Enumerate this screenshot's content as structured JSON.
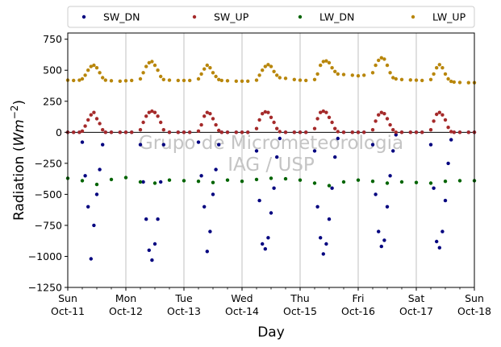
{
  "chart_data": {
    "type": "scatter",
    "title": "",
    "xlabel": "Day",
    "ylabel_prefix": "Radiation (",
    "ylabel_unit": "Wm",
    "ylabel_exp": "−2",
    "ylabel_suffix": ")",
    "ylim": [
      -1250,
      800
    ],
    "xlim_days": [
      0,
      7
    ],
    "yticks": [
      -1250,
      -1000,
      -750,
      -500,
      -250,
      0,
      250,
      500,
      750
    ],
    "xticks": [
      {
        "day": 0,
        "l1": "Sun",
        "l2": "Oct-11"
      },
      {
        "day": 1,
        "l1": "Mon",
        "l2": "Oct-12"
      },
      {
        "day": 2,
        "l1": "Tue",
        "l2": "Oct-13"
      },
      {
        "day": 3,
        "l1": "Wed",
        "l2": "Oct-14"
      },
      {
        "day": 4,
        "l1": "Thu",
        "l2": "Oct-15"
      },
      {
        "day": 5,
        "l1": "Fri",
        "l2": "Oct-16"
      },
      {
        "day": 6,
        "l1": "Sat",
        "l2": "Oct-17"
      },
      {
        "day": 7,
        "l1": "Sun",
        "l2": "Oct-18"
      }
    ],
    "grid": "vertical-major",
    "legend_position": "top-outside",
    "zero_line": true,
    "watermark": [
      "Grupo de Micrometeorologia",
      "IAG / USP"
    ],
    "series": [
      {
        "name": "SW_DN",
        "color": "#00007f",
        "x": [
          0.0,
          0.1,
          0.2,
          0.25,
          0.3,
          0.35,
          0.4,
          0.45,
          0.5,
          0.55,
          0.6,
          0.65,
          0.75,
          0.9,
          1.0,
          1.1,
          1.25,
          1.3,
          1.35,
          1.4,
          1.45,
          1.5,
          1.55,
          1.6,
          1.65,
          1.75,
          1.9,
          2.0,
          2.1,
          2.25,
          2.3,
          2.35,
          2.4,
          2.45,
          2.5,
          2.55,
          2.6,
          2.65,
          2.75,
          2.9,
          3.0,
          3.1,
          3.25,
          3.3,
          3.35,
          3.4,
          3.45,
          3.5,
          3.55,
          3.6,
          3.65,
          3.75,
          3.9,
          4.0,
          4.1,
          4.25,
          4.3,
          4.35,
          4.4,
          4.45,
          4.5,
          4.55,
          4.6,
          4.65,
          4.75,
          4.9,
          5.0,
          5.1,
          5.25,
          5.3,
          5.35,
          5.4,
          5.45,
          5.5,
          5.55,
          5.6,
          5.65,
          5.75,
          5.9,
          6.0,
          6.1,
          6.25,
          6.3,
          6.35,
          6.4,
          6.45,
          6.5,
          6.55,
          6.6,
          6.65,
          6.75,
          6.9,
          7.0
        ],
        "y": [
          0,
          0,
          0,
          -80,
          -350,
          -600,
          -1020,
          -750,
          -500,
          -300,
          -100,
          0,
          0,
          0,
          0,
          0,
          -100,
          -400,
          -700,
          -950,
          -1030,
          -900,
          -700,
          -400,
          -100,
          0,
          0,
          0,
          0,
          -80,
          -350,
          -600,
          -960,
          -800,
          -500,
          -300,
          -100,
          0,
          0,
          0,
          0,
          0,
          -150,
          -550,
          -900,
          -940,
          -850,
          -650,
          -450,
          -200,
          -50,
          0,
          0,
          0,
          0,
          -150,
          -600,
          -850,
          -980,
          -900,
          -700,
          -450,
          -200,
          -50,
          0,
          0,
          0,
          0,
          -100,
          -500,
          -800,
          -920,
          -870,
          -600,
          -350,
          -150,
          -20,
          0,
          0,
          0,
          0,
          -100,
          -450,
          -880,
          -930,
          -800,
          -550,
          -250,
          -60,
          0,
          0,
          0,
          0
        ]
      },
      {
        "name": "SW_UP",
        "color": "#a52a2a",
        "x": [
          0.0,
          0.1,
          0.2,
          0.25,
          0.3,
          0.35,
          0.4,
          0.45,
          0.5,
          0.55,
          0.6,
          0.65,
          0.75,
          0.9,
          1.0,
          1.1,
          1.25,
          1.3,
          1.35,
          1.4,
          1.45,
          1.5,
          1.55,
          1.6,
          1.65,
          1.75,
          1.9,
          2.0,
          2.1,
          2.25,
          2.3,
          2.35,
          2.4,
          2.45,
          2.5,
          2.55,
          2.6,
          2.65,
          2.75,
          2.9,
          3.0,
          3.1,
          3.25,
          3.3,
          3.35,
          3.4,
          3.45,
          3.5,
          3.55,
          3.6,
          3.65,
          3.75,
          3.9,
          4.0,
          4.1,
          4.25,
          4.3,
          4.35,
          4.4,
          4.45,
          4.5,
          4.55,
          4.6,
          4.65,
          4.75,
          4.9,
          5.0,
          5.1,
          5.25,
          5.3,
          5.35,
          5.4,
          5.45,
          5.5,
          5.55,
          5.6,
          5.65,
          5.75,
          5.9,
          6.0,
          6.1,
          6.25,
          6.3,
          6.35,
          6.4,
          6.45,
          6.5,
          6.55,
          6.6,
          6.65,
          6.75,
          6.9,
          7.0
        ],
        "y": [
          0,
          0,
          0,
          10,
          50,
          100,
          140,
          160,
          110,
          70,
          20,
          0,
          0,
          0,
          0,
          0,
          20,
          80,
          130,
          160,
          170,
          160,
          130,
          80,
          20,
          0,
          0,
          0,
          0,
          10,
          60,
          130,
          160,
          150,
          110,
          60,
          15,
          0,
          0,
          0,
          0,
          0,
          30,
          100,
          150,
          165,
          160,
          120,
          80,
          30,
          5,
          0,
          0,
          0,
          0,
          30,
          110,
          160,
          170,
          160,
          120,
          80,
          30,
          5,
          0,
          0,
          0,
          0,
          20,
          90,
          140,
          160,
          150,
          110,
          60,
          20,
          0,
          0,
          0,
          0,
          0,
          20,
          90,
          145,
          160,
          140,
          100,
          40,
          5,
          0,
          0,
          0,
          0
        ]
      },
      {
        "name": "LW_DN",
        "color": "#006400",
        "x": [
          0.0,
          0.25,
          0.5,
          0.75,
          1.0,
          1.25,
          1.5,
          1.75,
          2.0,
          2.25,
          2.5,
          2.75,
          3.0,
          3.25,
          3.5,
          3.75,
          4.0,
          4.25,
          4.5,
          4.75,
          5.0,
          5.25,
          5.5,
          5.75,
          6.0,
          6.25,
          6.5,
          6.75,
          7.0
        ],
        "y": [
          -370,
          -390,
          -420,
          -380,
          -365,
          -400,
          -410,
          -385,
          -390,
          -395,
          -405,
          -385,
          -395,
          -380,
          -370,
          -375,
          -385,
          -410,
          -430,
          -400,
          -385,
          -395,
          -410,
          -400,
          -405,
          -410,
          -395,
          -390,
          -390
        ]
      },
      {
        "name": "LW_UP",
        "color": "#b8860b",
        "x": [
          0.0,
          0.1,
          0.2,
          0.25,
          0.3,
          0.35,
          0.4,
          0.45,
          0.5,
          0.55,
          0.6,
          0.65,
          0.75,
          0.9,
          1.0,
          1.1,
          1.25,
          1.3,
          1.35,
          1.4,
          1.45,
          1.5,
          1.55,
          1.6,
          1.65,
          1.75,
          1.9,
          2.0,
          2.1,
          2.25,
          2.3,
          2.35,
          2.4,
          2.45,
          2.5,
          2.55,
          2.6,
          2.65,
          2.75,
          2.9,
          3.0,
          3.1,
          3.25,
          3.3,
          3.35,
          3.4,
          3.45,
          3.5,
          3.55,
          3.6,
          3.65,
          3.75,
          3.9,
          4.0,
          4.1,
          4.25,
          4.3,
          4.35,
          4.4,
          4.45,
          4.5,
          4.55,
          4.6,
          4.65,
          4.75,
          4.9,
          5.0,
          5.1,
          5.25,
          5.3,
          5.35,
          5.4,
          5.45,
          5.5,
          5.55,
          5.6,
          5.65,
          5.75,
          5.9,
          6.0,
          6.1,
          6.25,
          6.3,
          6.35,
          6.4,
          6.45,
          6.5,
          6.55,
          6.6,
          6.65,
          6.75,
          6.9,
          7.0
        ],
        "y": [
          420,
          418,
          420,
          430,
          460,
          500,
          530,
          540,
          520,
          480,
          440,
          420,
          415,
          412,
          415,
          418,
          430,
          480,
          530,
          560,
          570,
          540,
          500,
          450,
          425,
          420,
          418,
          418,
          418,
          430,
          470,
          510,
          540,
          520,
          480,
          450,
          425,
          418,
          415,
          412,
          412,
          412,
          420,
          460,
          500,
          530,
          545,
          530,
          490,
          460,
          440,
          435,
          425,
          420,
          418,
          425,
          470,
          540,
          570,
          575,
          560,
          520,
          490,
          470,
          465,
          460,
          455,
          460,
          480,
          540,
          580,
          600,
          590,
          540,
          480,
          440,
          430,
          425,
          422,
          420,
          418,
          425,
          470,
          520,
          545,
          520,
          470,
          430,
          410,
          405,
          402,
          400,
          400
        ]
      }
    ]
  }
}
